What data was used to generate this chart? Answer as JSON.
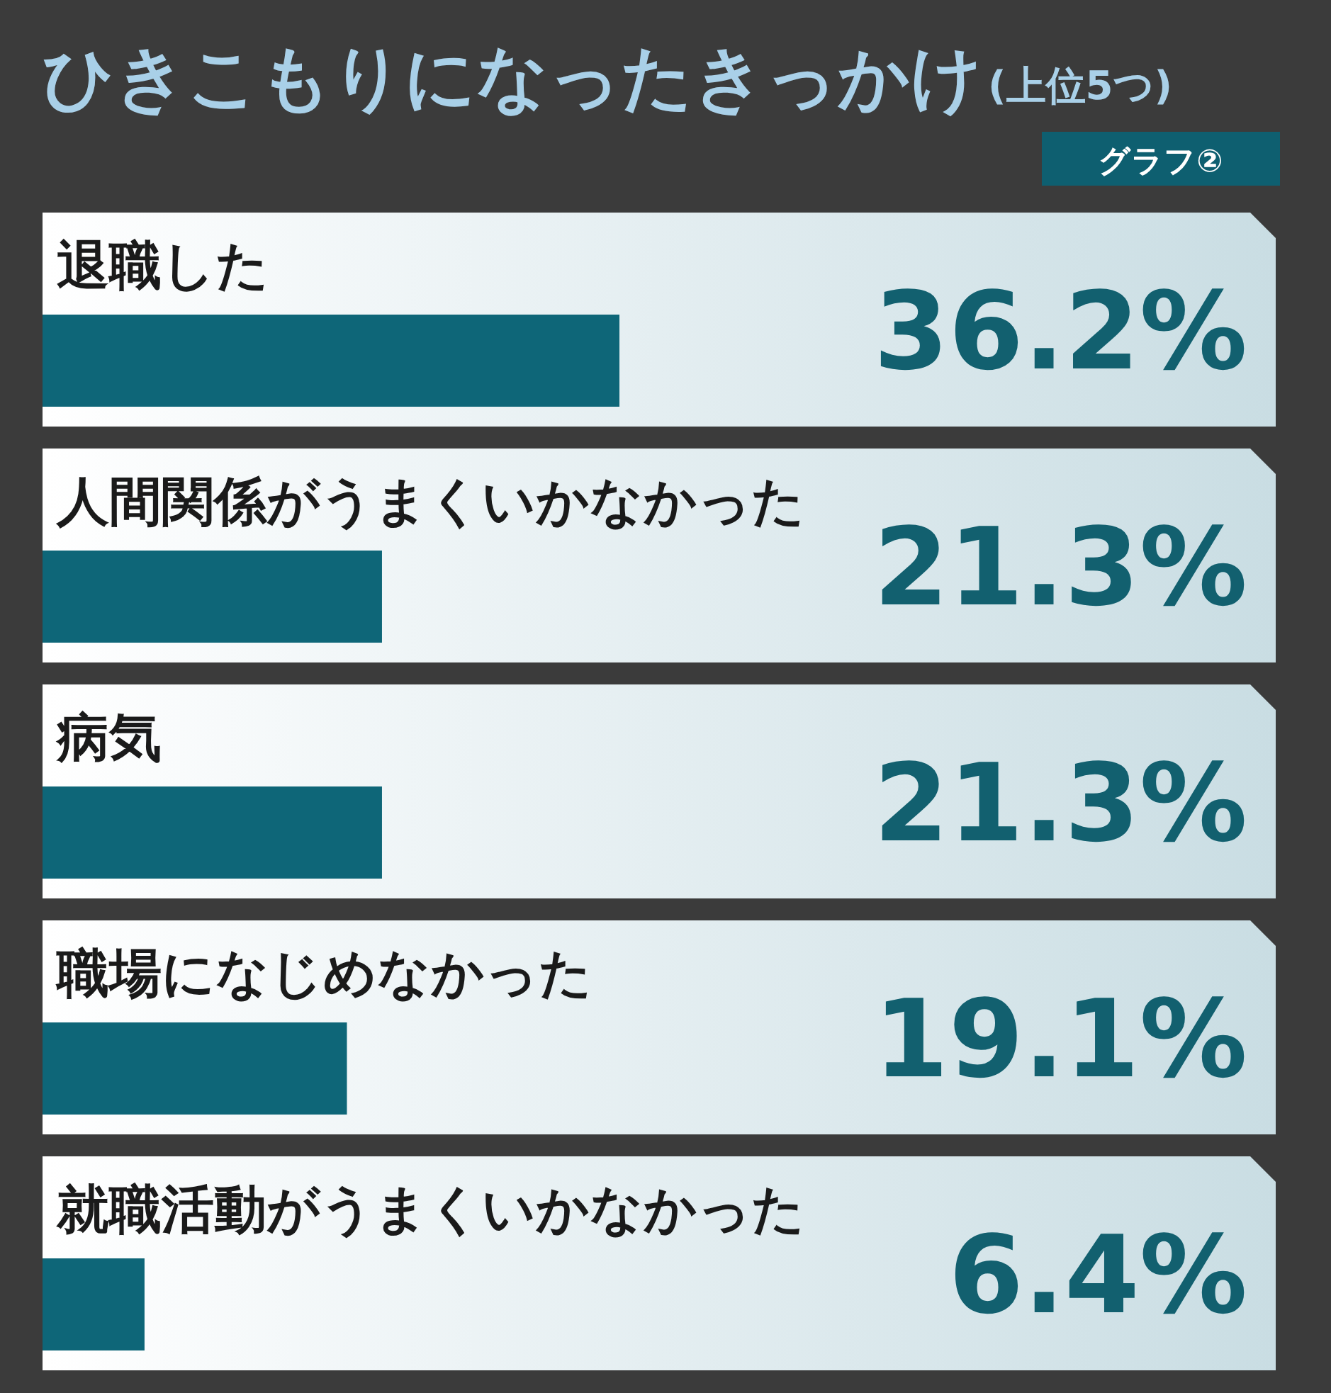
{
  "chart_data": {
    "type": "bar",
    "orientation": "horizontal",
    "title": "ひきこもりになったきっかけ",
    "subtitle": "(上位5つ)",
    "annotations": [
      "グラフ②"
    ],
    "categories": [
      "退職した",
      "人間関係がうまくいかなかった",
      "病気",
      "職場になじめなかった",
      "就職活動がうまくいかなかった"
    ],
    "values": [
      36.2,
      21.3,
      21.3,
      19.1,
      6.4
    ],
    "value_labels": [
      "36.2%",
      "21.3%",
      "21.3%",
      "19.1%",
      "6.4%"
    ],
    "color": "#0e6678"
  }
}
